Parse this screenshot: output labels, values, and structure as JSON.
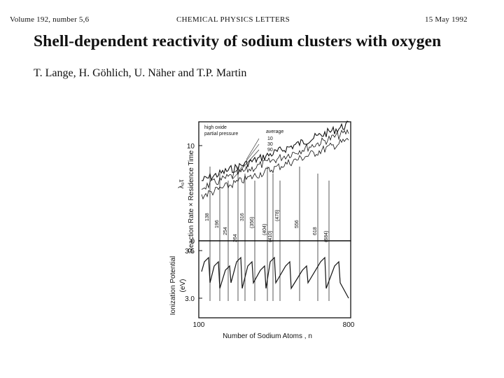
{
  "header": {
    "volume": "Volume 192, number 5,6",
    "journal": "CHEMICAL PHYSICS LETTERS",
    "date": "15 May 1992"
  },
  "title": "Shell-dependent reactivity of sodium clusters with oxygen",
  "authors": "T. Lange, H. Göhlich, U. Näher and T.P. Martin",
  "figure": {
    "upper_ylabel": "Reaction Rate × Residence Time",
    "upper_ylabel_sym": "λ₀τ",
    "upper_ticks": [
      "10",
      "0"
    ],
    "lower_ylabel": "Ionization Potential",
    "lower_ylabel_unit": "(eV)",
    "lower_ticks": [
      "3.5",
      "3.0"
    ],
    "xticks": [
      "100",
      "800"
    ],
    "xlabel": "Number of Sodium Atoms , n",
    "legend": {
      "line1": "high oxide",
      "line2": "partial pressure",
      "average": "average",
      "values": [
        "10",
        "30",
        "90"
      ]
    },
    "shell_labels": [
      "138",
      "196",
      "254",
      "264",
      "316",
      "(356)",
      "(404)",
      "(410)",
      "(478)",
      "556",
      "618",
      "(684)"
    ]
  }
}
